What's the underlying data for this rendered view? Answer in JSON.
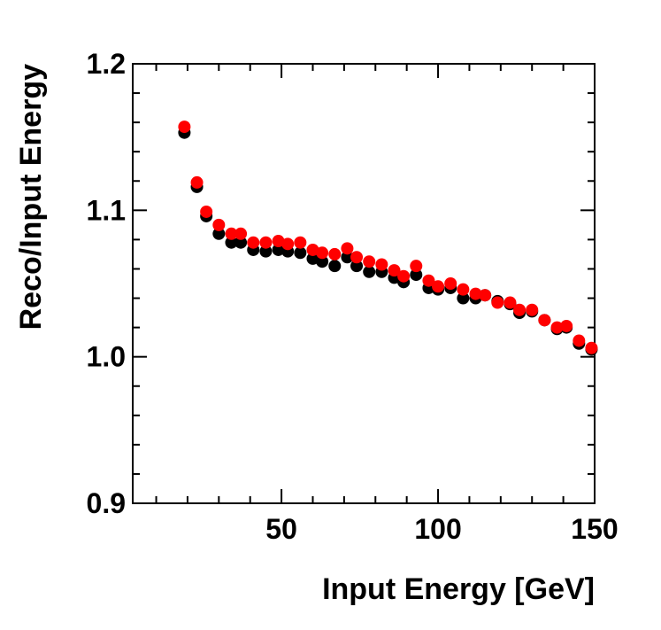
{
  "chart_data": {
    "type": "scatter",
    "xlabel": "Input Energy [GeV]",
    "ylabel": "Reco/Input Energy",
    "x": [
      19,
      23,
      26,
      30,
      34,
      37,
      41,
      45,
      49,
      52,
      56,
      60,
      63,
      67,
      71,
      74,
      78,
      82,
      86,
      89,
      93,
      97,
      100,
      104,
      108,
      112,
      115,
      119,
      123,
      126,
      130,
      134,
      138,
      141,
      145,
      149
    ],
    "series": [
      {
        "color": "#000000",
        "values": [
          1.153,
          1.116,
          1.096,
          1.084,
          1.078,
          1.078,
          1.073,
          1.072,
          1.073,
          1.072,
          1.071,
          1.067,
          1.065,
          1.062,
          1.068,
          1.062,
          1.058,
          1.058,
          1.054,
          1.051,
          1.056,
          1.047,
          1.046,
          1.047,
          1.04,
          1.04,
          1.042,
          1.038,
          1.036,
          1.03,
          1.031,
          1.025,
          1.019,
          1.02,
          1.009,
          1.005
        ]
      },
      {
        "color": "#ff0000",
        "values": [
          1.157,
          1.119,
          1.099,
          1.09,
          1.084,
          1.084,
          1.078,
          1.078,
          1.079,
          1.077,
          1.078,
          1.073,
          1.071,
          1.07,
          1.074,
          1.068,
          1.065,
          1.063,
          1.059,
          1.055,
          1.062,
          1.052,
          1.048,
          1.05,
          1.046,
          1.043,
          1.042,
          1.037,
          1.037,
          1.032,
          1.032,
          1.025,
          1.02,
          1.021,
          1.011,
          1.006
        ]
      }
    ],
    "xlim": [
      2.5,
      150
    ],
    "ylim": [
      0.9,
      1.2
    ],
    "xticks": [
      50,
      100,
      150
    ],
    "yticks": [
      0.9,
      {
        "value": 1,
        "label": "1.0"
      },
      1.1,
      1.2
    ],
    "xminor_ticks": [
      10,
      20,
      30,
      40,
      60,
      70,
      80,
      90,
      110,
      120,
      130,
      140
    ],
    "yminor_ticks": [
      0.92,
      0.94,
      0.96,
      0.98,
      1.02,
      1.04,
      1.06,
      1.08,
      1.12,
      1.14,
      1.16,
      1.18
    ]
  }
}
